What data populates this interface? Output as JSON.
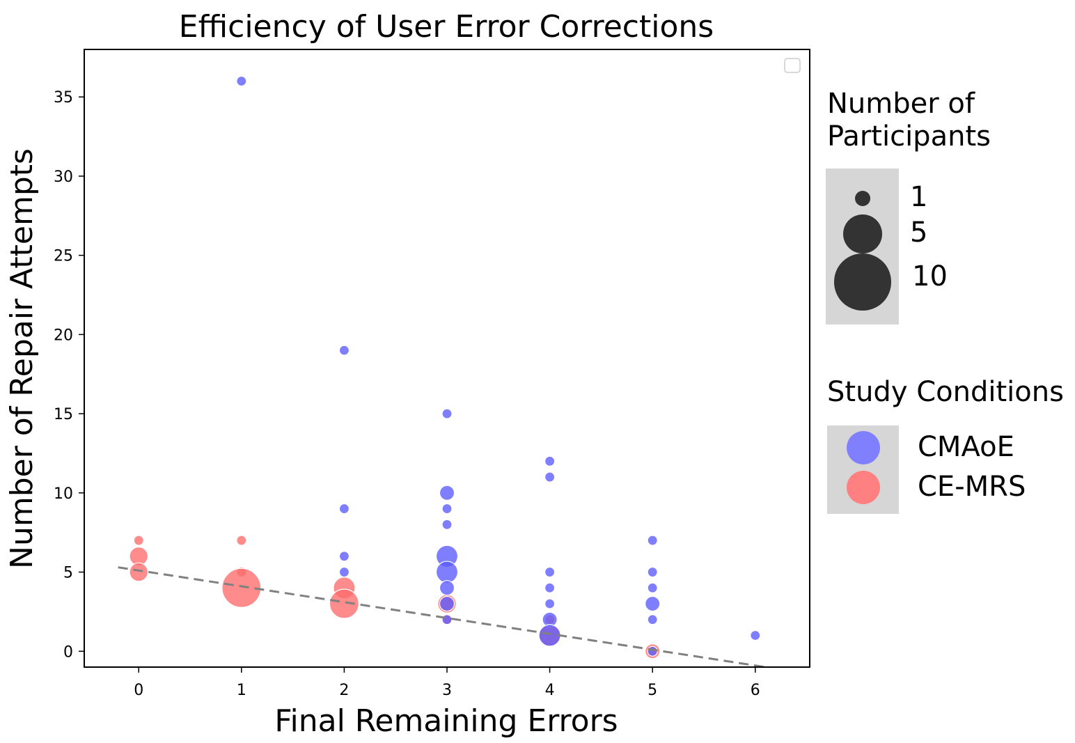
{
  "chart_data": {
    "type": "scatter",
    "title": "Efficiency of User Error Corrections",
    "xlabel": "Final Remaining Errors",
    "ylabel": "Number of Repair Attempts",
    "xlim": [
      -0.53,
      6.53
    ],
    "ylim": [
      -1.0,
      38.0
    ],
    "x_ticks": [
      0,
      1,
      2,
      3,
      4,
      5,
      6
    ],
    "y_ticks": [
      0,
      5,
      10,
      15,
      20,
      25,
      30,
      35
    ],
    "grid": false,
    "trendline": {
      "style": "dashed",
      "color": "#808080",
      "points": [
        [
          -0.2,
          5.3
        ],
        [
          6.1,
          -1.0
        ]
      ]
    },
    "series": [
      {
        "name": "CE-MRS",
        "color": "#ff6b6b",
        "points": [
          {
            "x": 0,
            "y": 7,
            "n": 1
          },
          {
            "x": 0,
            "y": 6,
            "n": 3
          },
          {
            "x": 0,
            "y": 5,
            "n": 3
          },
          {
            "x": 1,
            "y": 7,
            "n": 1
          },
          {
            "x": 1,
            "y": 5,
            "n": 1
          },
          {
            "x": 1,
            "y": 4,
            "n": 12
          },
          {
            "x": 2,
            "y": 4,
            "n": 4
          },
          {
            "x": 2,
            "y": 3,
            "n": 7
          },
          {
            "x": 3,
            "y": 3,
            "n": 3
          },
          {
            "x": 3,
            "y": 2,
            "n": 1
          },
          {
            "x": 4,
            "y": 2,
            "n": 1
          },
          {
            "x": 4,
            "y": 1,
            "n": 4
          },
          {
            "x": 5,
            "y": 0,
            "n": 2
          }
        ]
      },
      {
        "name": "CMAoE",
        "color": "#5a5aff",
        "points": [
          {
            "x": 1,
            "y": 36,
            "n": 1
          },
          {
            "x": 2,
            "y": 19,
            "n": 1
          },
          {
            "x": 2,
            "y": 9,
            "n": 1
          },
          {
            "x": 2,
            "y": 6,
            "n": 1
          },
          {
            "x": 2,
            "y": 5,
            "n": 1
          },
          {
            "x": 3,
            "y": 15,
            "n": 1
          },
          {
            "x": 3,
            "y": 10,
            "n": 2
          },
          {
            "x": 3,
            "y": 9,
            "n": 1
          },
          {
            "x": 3,
            "y": 8,
            "n": 1
          },
          {
            "x": 3,
            "y": 6,
            "n": 4
          },
          {
            "x": 3,
            "y": 5,
            "n": 4
          },
          {
            "x": 3,
            "y": 4,
            "n": 2
          },
          {
            "x": 3,
            "y": 3,
            "n": 2
          },
          {
            "x": 3,
            "y": 2,
            "n": 1
          },
          {
            "x": 4,
            "y": 12,
            "n": 1
          },
          {
            "x": 4,
            "y": 11,
            "n": 1
          },
          {
            "x": 4,
            "y": 5,
            "n": 1
          },
          {
            "x": 4,
            "y": 4,
            "n": 1
          },
          {
            "x": 4,
            "y": 3,
            "n": 1
          },
          {
            "x": 4,
            "y": 2,
            "n": 2
          },
          {
            "x": 4,
            "y": 1,
            "n": 4
          },
          {
            "x": 5,
            "y": 7,
            "n": 1
          },
          {
            "x": 5,
            "y": 5,
            "n": 1
          },
          {
            "x": 5,
            "y": 4,
            "n": 1
          },
          {
            "x": 5,
            "y": 3,
            "n": 2
          },
          {
            "x": 5,
            "y": 2,
            "n": 1
          },
          {
            "x": 5,
            "y": 0,
            "n": 1
          },
          {
            "x": 6,
            "y": 1,
            "n": 1
          }
        ]
      }
    ]
  },
  "size_legend": {
    "title_line1": "Number of",
    "title_line2": "Participants",
    "items": [
      {
        "label": "1",
        "n": 1
      },
      {
        "label": "5",
        "n": 5
      },
      {
        "label": "10",
        "n": 10
      }
    ],
    "marker_color": "#333333"
  },
  "condition_legend": {
    "title": "Study Conditions",
    "items": [
      {
        "label": "CMAoE",
        "color": "#8080ff"
      },
      {
        "label": "CE-MRS",
        "color": "#ff8080"
      }
    ]
  }
}
